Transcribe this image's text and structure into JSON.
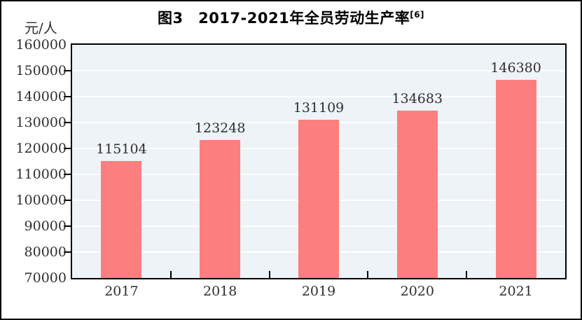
{
  "figure": {
    "title": "图3　2017-2021年全员劳动生产率",
    "title_superscript": "[6]",
    "unit_label": "元/人"
  },
  "chart_data": {
    "type": "bar",
    "title": "图3 2017-2021年全员劳动生产率[6]",
    "ylabel_unit": "元/人",
    "categories": [
      "2017",
      "2018",
      "2019",
      "2020",
      "2021"
    ],
    "values": [
      115104,
      123248,
      131109,
      134683,
      146380
    ],
    "ylim": [
      70000,
      160000
    ],
    "ytick_step": 10000,
    "yticks": [
      70000,
      80000,
      90000,
      100000,
      110000,
      120000,
      130000,
      140000,
      150000,
      160000
    ],
    "grid": true,
    "gridline_color": "#ffffff",
    "plot_bg": "#edf3f7",
    "bar_color": "#fc7e7e",
    "axis_color": "#000000",
    "text_color": "#2e2e2e",
    "legend": false,
    "data_labels": true
  }
}
